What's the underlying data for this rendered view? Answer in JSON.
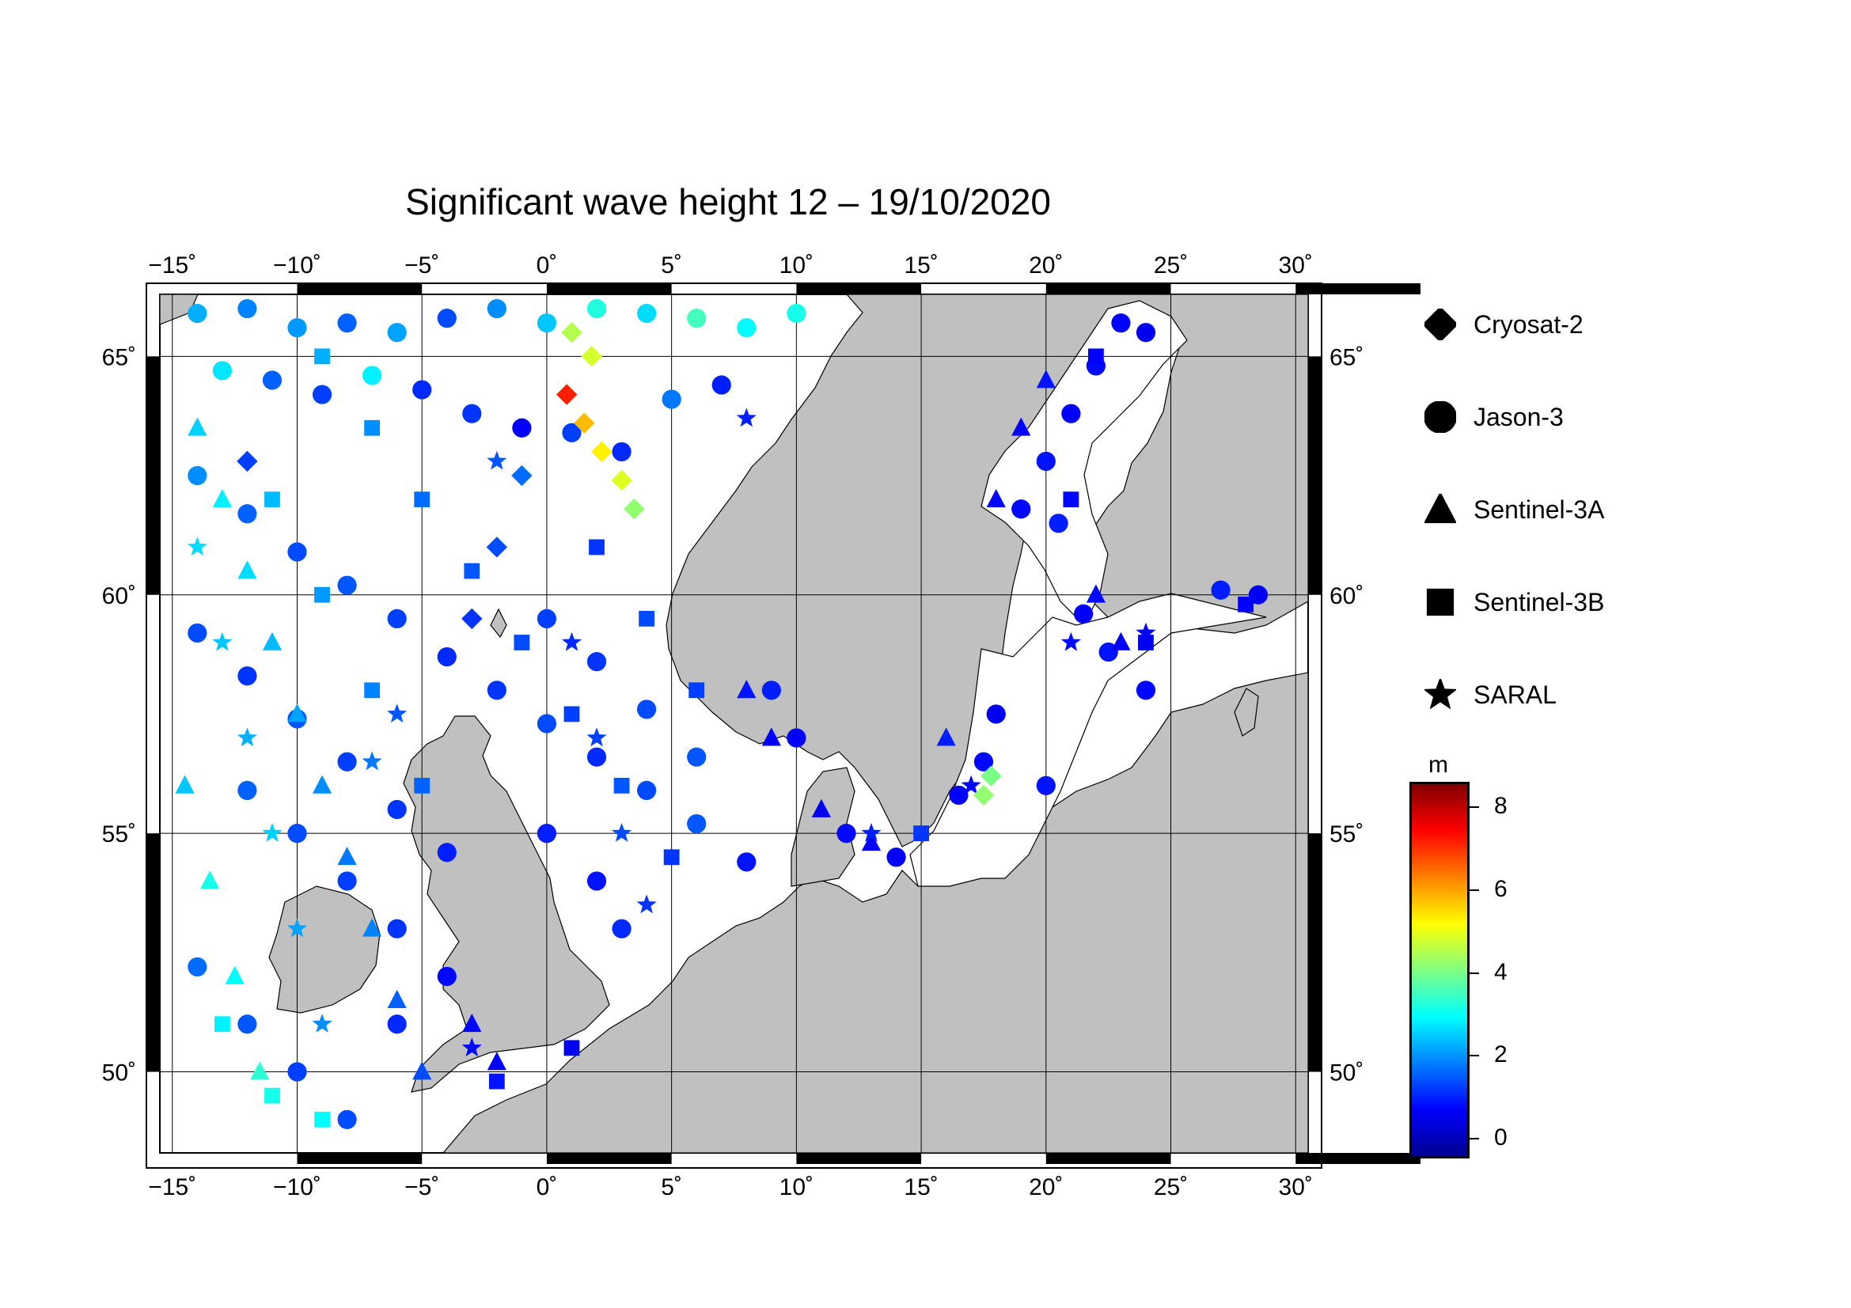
{
  "title": "Significant wave height 12 – 19/10/2020",
  "map": {
    "lon_ticks": [
      "−15˚",
      "−10˚",
      "−5˚",
      "0˚",
      "5˚",
      "10˚",
      "15˚",
      "20˚",
      "25˚",
      "30˚"
    ],
    "lon_values": [
      -15,
      -10,
      -5,
      0,
      5,
      10,
      15,
      20,
      25,
      30
    ],
    "lat_ticks": [
      "50˚",
      "55˚",
      "60˚",
      "65˚"
    ],
    "lat_values": [
      50,
      55,
      60,
      65
    ],
    "lon_range": [
      -15.5,
      30.5
    ],
    "lat_range": [
      48.3,
      66.3
    ],
    "land_color": "#c0c0c0",
    "sea_color": "#ffffff"
  },
  "legend": {
    "items": [
      {
        "label": "Cryosat-2",
        "symbol": "diamond"
      },
      {
        "label": "Jason-3",
        "symbol": "circle"
      },
      {
        "label": "Sentinel-3A",
        "symbol": "triangle"
      },
      {
        "label": "Sentinel-3B",
        "symbol": "square"
      },
      {
        "label": "SARAL",
        "symbol": "star"
      }
    ]
  },
  "colorbar": {
    "unit": "m",
    "labels": [
      "8",
      "6",
      "4",
      "2",
      "0"
    ],
    "values": [
      8,
      6,
      4,
      2,
      0
    ],
    "range": [
      -0.5,
      8.6
    ],
    "colors": [
      "#00008f",
      "#0000ff",
      "#0080ff",
      "#00ffff",
      "#80ff80",
      "#ffff00",
      "#ff8000",
      "#ff0000",
      "#800000"
    ]
  },
  "chart_data": {
    "type": "scatter",
    "title": "Significant wave height 12 – 19/10/2020",
    "xlabel": "",
    "ylabel": "",
    "xlim": [
      -15.5,
      30.5
    ],
    "ylim": [
      48.3,
      66.3
    ],
    "series": [
      {
        "name": "Jason-3",
        "marker": "circle",
        "points": [
          [
            -14,
            65.9,
            2.2
          ],
          [
            -12,
            66,
            1.8
          ],
          [
            -10,
            65.6,
            2
          ],
          [
            -8,
            65.7,
            1.5
          ],
          [
            -6,
            65.5,
            2.1
          ],
          [
            -4,
            65.8,
            1.3
          ],
          [
            -2,
            66,
            1.9
          ],
          [
            0,
            65.7,
            2.4
          ],
          [
            2,
            66,
            3.2
          ],
          [
            4,
            65.9,
            2.6
          ],
          [
            6,
            65.8,
            3.5
          ],
          [
            8,
            65.6,
            2.9
          ],
          [
            10,
            65.9,
            3.1
          ],
          [
            -13,
            64.7,
            2.7
          ],
          [
            -11,
            64.5,
            1.5
          ],
          [
            -9,
            64.2,
            1.2
          ],
          [
            -7,
            64.6,
            2.8
          ],
          [
            -5,
            64.3,
            1
          ],
          [
            -3,
            63.8,
            1.1
          ],
          [
            -1,
            63.5,
            0.6
          ],
          [
            1,
            63.4,
            1.2
          ],
          [
            3,
            63,
            1
          ],
          [
            5,
            64.1,
            1.7
          ],
          [
            7,
            64.4,
            0.9
          ],
          [
            -14,
            62.5,
            1.9
          ],
          [
            -12,
            61.7,
            1.5
          ],
          [
            -10,
            60.9,
            1.3
          ],
          [
            -8,
            60.2,
            1.4
          ],
          [
            -6,
            59.5,
            1.2
          ],
          [
            -4,
            58.7,
            1
          ],
          [
            -2,
            58,
            1.1
          ],
          [
            0,
            57.3,
            1.3
          ],
          [
            2,
            56.6,
            1
          ],
          [
            4,
            55.9,
            1.3
          ],
          [
            6,
            55.2,
            1.4
          ],
          [
            8,
            54.4,
            0.8
          ],
          [
            -14,
            59.2,
            1.3
          ],
          [
            -12,
            58.3,
            1.1
          ],
          [
            -10,
            57.4,
            1.4
          ],
          [
            -8,
            56.5,
            1.2
          ],
          [
            -6,
            55.5,
            1.1
          ],
          [
            -4,
            54.6,
            0.9
          ],
          [
            0,
            59.5,
            1.2
          ],
          [
            2,
            58.6,
            1.1
          ],
          [
            4,
            57.6,
            1.3
          ],
          [
            6,
            56.6,
            1.4
          ],
          [
            -12,
            55.9,
            1.5
          ],
          [
            -10,
            55,
            1.3
          ],
          [
            -8,
            54,
            1.2
          ],
          [
            -6,
            53,
            1.1
          ],
          [
            -14,
            52.2,
            1.6
          ],
          [
            -12,
            51,
            1.4
          ],
          [
            -10,
            50,
            1.2
          ],
          [
            -8,
            49,
            1.3
          ],
          [
            -6,
            51,
            1.0
          ],
          [
            -4,
            52,
            0.7
          ],
          [
            0,
            55,
            0.9
          ],
          [
            2,
            54,
            0.8
          ],
          [
            3,
            53,
            1.0
          ],
          [
            23,
            65.7,
            0.6
          ],
          [
            24,
            65.5,
            0.5
          ],
          [
            22,
            64.8,
            0.7
          ],
          [
            21,
            63.8,
            0.6
          ],
          [
            20,
            62.8,
            0.8
          ],
          [
            19,
            61.8,
            0.7
          ],
          [
            20.5,
            61.5,
            0.9
          ],
          [
            21.5,
            59.6,
            0.6
          ],
          [
            22.5,
            58.8,
            0.8
          ],
          [
            24,
            58,
            0.7
          ],
          [
            18,
            57.5,
            0.5
          ],
          [
            17.5,
            56.5,
            0.7
          ],
          [
            16.5,
            55.8,
            0.6
          ],
          [
            27,
            60.1,
            0.9
          ],
          [
            28.5,
            60,
            0.5
          ],
          [
            20,
            56,
            0.8
          ],
          [
            12,
            55,
            0.7
          ],
          [
            14,
            54.5,
            0.6
          ],
          [
            9,
            58,
            0.9
          ],
          [
            10,
            57,
            0.6
          ]
        ]
      },
      {
        "name": "Sentinel-3A",
        "marker": "triangle",
        "points": [
          [
            -14,
            63.5,
            2.5
          ],
          [
            -13,
            62,
            2.8
          ],
          [
            -12,
            60.5,
            2.6
          ],
          [
            -11,
            59,
            2.3
          ],
          [
            -10,
            57.5,
            2.1
          ],
          [
            -9,
            56,
            1.9
          ],
          [
            -8,
            54.5,
            1.7
          ],
          [
            -7,
            53,
            1.8
          ],
          [
            -6,
            51.5,
            1.5
          ],
          [
            -5,
            50,
            1.3
          ],
          [
            -14.5,
            56,
            2.4
          ],
          [
            -13.5,
            54,
            3.1
          ],
          [
            -12.5,
            52,
            2.9
          ],
          [
            -11.5,
            50,
            3.3
          ],
          [
            8,
            58,
            0.8
          ],
          [
            9,
            57,
            0.6
          ],
          [
            11,
            55.5,
            0.5
          ],
          [
            13,
            54.8,
            0.6
          ],
          [
            18,
            62,
            0.7
          ],
          [
            19,
            63.5,
            0.6
          ],
          [
            20,
            64.5,
            0.8
          ],
          [
            22,
            60,
            0.7
          ],
          [
            23,
            59,
            0.6
          ],
          [
            16,
            57,
            0.9
          ],
          [
            -2,
            50.2,
            0.6
          ],
          [
            -3,
            51,
            0.7
          ]
        ]
      },
      {
        "name": "Sentinel-3B",
        "marker": "square",
        "points": [
          [
            -9,
            65,
            2.2
          ],
          [
            -7,
            63.5,
            1.9
          ],
          [
            -5,
            62,
            1.6
          ],
          [
            -3,
            60.5,
            1.4
          ],
          [
            -1,
            59,
            1.3
          ],
          [
            1,
            57.5,
            1.2
          ],
          [
            3,
            56,
            1.4
          ],
          [
            5,
            54.5,
            1.1
          ],
          [
            -11,
            62,
            2.3
          ],
          [
            -9,
            60,
            2
          ],
          [
            -7,
            58,
            1.8
          ],
          [
            -5,
            56,
            1.5
          ],
          [
            -13,
            51,
            2.8
          ],
          [
            -11,
            49.5,
            3.1
          ],
          [
            -9,
            49,
            2.9
          ],
          [
            2,
            61,
            1.1
          ],
          [
            4,
            59.5,
            1.3
          ],
          [
            6,
            58,
            1.2
          ],
          [
            22,
            65,
            0.6
          ],
          [
            21,
            62,
            0.7
          ],
          [
            24,
            59,
            0.5
          ],
          [
            28,
            59.8,
            0.6
          ],
          [
            15,
            55,
            1.1
          ],
          [
            -2,
            49.8,
            0.8
          ],
          [
            1,
            50.5,
            0.5
          ]
        ]
      },
      {
        "name": "SARAL",
        "marker": "star",
        "points": [
          [
            -14,
            61,
            2.6
          ],
          [
            -13,
            59,
            2.4
          ],
          [
            -12,
            57,
            2.2
          ],
          [
            -11,
            55,
            2.5
          ],
          [
            -10,
            53,
            2.1
          ],
          [
            -9,
            51,
            1.9
          ],
          [
            -7,
            56.5,
            1.7
          ],
          [
            -6,
            57.5,
            1.4
          ],
          [
            1,
            59,
            1.0
          ],
          [
            2,
            57,
            1.2
          ],
          [
            3,
            55,
            1.3
          ],
          [
            4,
            53.5,
            1.1
          ],
          [
            13,
            55,
            0.9
          ],
          [
            17,
            56,
            0.6
          ],
          [
            21,
            59,
            0.7
          ],
          [
            24,
            59.2,
            0.6
          ],
          [
            -3,
            50.5,
            0.7
          ],
          [
            8,
            63.7,
            0.9
          ],
          [
            -2,
            62.8,
            1.4
          ]
        ]
      },
      {
        "name": "Cryosat-2",
        "marker": "diamond",
        "points": [
          [
            -12,
            62.8,
            1.2
          ],
          [
            0.8,
            64.2,
            7.2
          ],
          [
            1.5,
            63.6,
            5.8
          ],
          [
            2.2,
            63,
            5.3
          ],
          [
            3,
            62.4,
            4.9
          ],
          [
            3.5,
            61.8,
            4.2
          ],
          [
            -1,
            62.5,
            1.6
          ],
          [
            -2,
            61,
            1.3
          ],
          [
            -3,
            59.5,
            1.1
          ],
          [
            1,
            65.5,
            4.5
          ],
          [
            1.8,
            65,
            4.8
          ],
          [
            17.5,
            55.8,
            4.2
          ],
          [
            17.8,
            56.2,
            4.0
          ]
        ]
      }
    ]
  }
}
